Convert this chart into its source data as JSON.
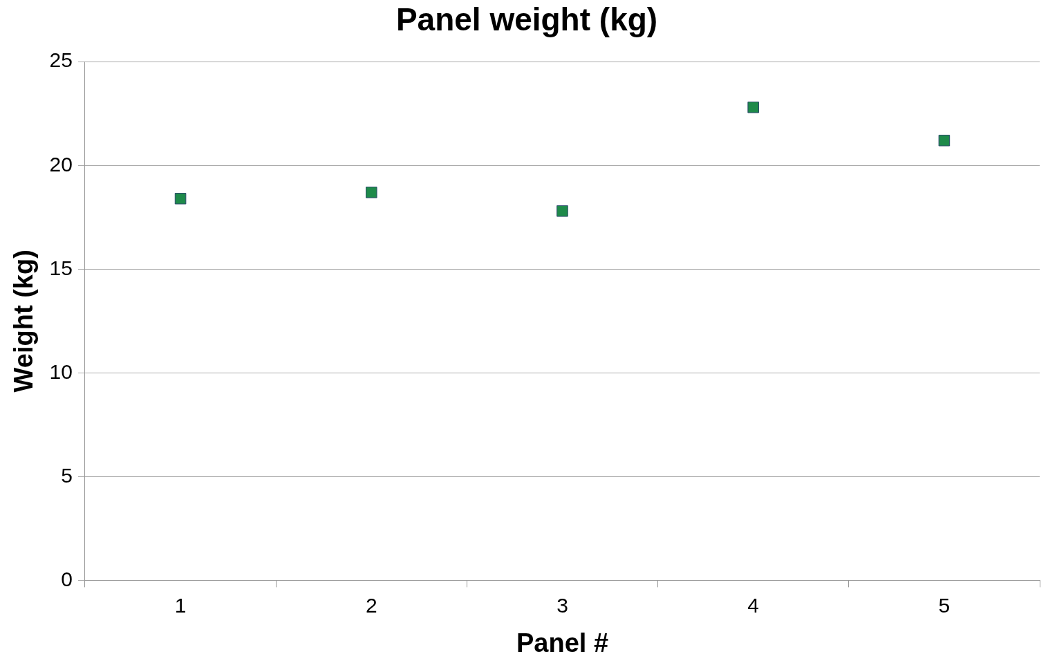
{
  "chart_data": {
    "type": "scatter",
    "title": "Panel weight (kg)",
    "xlabel": "Panel #",
    "ylabel": "Weight (kg)",
    "categories": [
      "1",
      "2",
      "3",
      "4",
      "5"
    ],
    "series": [
      {
        "color": "#1e8a4a",
        "values": [
          18.4,
          18.7,
          17.8,
          22.8,
          21.2
        ]
      }
    ],
    "ylim": [
      0,
      25
    ],
    "yticks": [
      0,
      5,
      10,
      15,
      20,
      25
    ],
    "grid": "y",
    "legend": false,
    "marker": "square"
  }
}
